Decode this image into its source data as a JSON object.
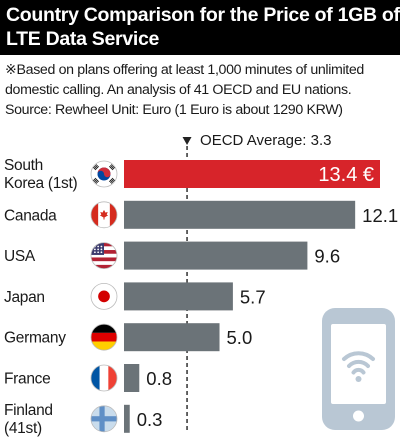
{
  "title": {
    "line1": "Country Comparison for the Price of 1GB of",
    "line2": "LTE Data Service"
  },
  "notes": [
    "※Based on plans offering at least 1,000 minutes of unlimited",
    "domestic calling.  An analysis of 41 OECD and EU nations.",
    "Source: Rewheel Unit: Euro (1 Euro is about 1290 KRW)"
  ],
  "colors": {
    "highlight": "#d7242a",
    "bar": "#6b7378",
    "phone": "#b9c7d4"
  },
  "chart_data": {
    "type": "bar",
    "orientation": "horizontal",
    "categories": [
      [
        "South",
        "Korea (1st)"
      ],
      [
        "Canada"
      ],
      [
        "USA"
      ],
      [
        "Japan"
      ],
      [
        "Germany"
      ],
      [
        "France"
      ],
      [
        "Finland",
        "(41st)"
      ]
    ],
    "flags": [
      "south-korea-flag-icon",
      "canada-flag-icon",
      "usa-flag-icon",
      "japan-flag-icon",
      "germany-flag-icon",
      "france-flag-icon",
      "finland-flag-icon"
    ],
    "values": [
      13.4,
      12.1,
      9.6,
      5.7,
      5.0,
      0.8,
      0.3
    ],
    "value_labels": [
      "13.4 €",
      "12.1",
      "9.6",
      "5.7",
      "5.0",
      "0.8",
      "0.3"
    ],
    "highlight_index": 0,
    "reference_line": {
      "label": "OECD Average: 3.3",
      "value": 3.3
    },
    "xlim": [
      0,
      13.4
    ],
    "decoration": "smartphone-wifi-icon"
  }
}
